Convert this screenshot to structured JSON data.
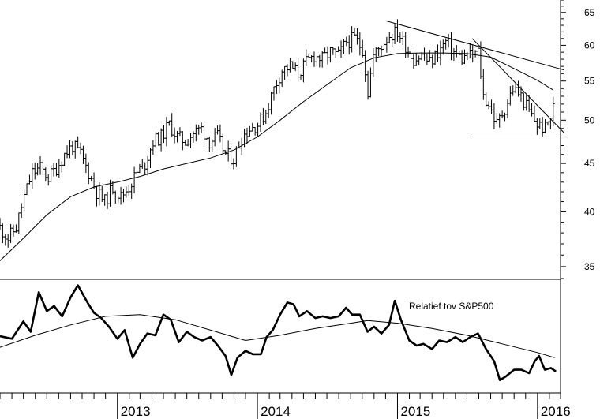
{
  "chart_data": [
    {
      "type": "ohlc",
      "y_scale": "log",
      "ylim": [
        34,
        67
      ],
      "y_ticks": [
        "35",
        "40",
        "45",
        "50",
        "55",
        "60",
        "65"
      ],
      "x_range": [
        "2012-03-01",
        "2016-03-01"
      ],
      "x_tick_labels": [
        {
          "date": "2013-01-01",
          "label": "2013"
        },
        {
          "date": "2014-01-01",
          "label": "2014"
        },
        {
          "date": "2015-01-01",
          "label": "2015"
        },
        {
          "date": "2016-01-01",
          "label": "2016"
        }
      ],
      "price_close": [
        [
          "2012-03-01",
          38.5
        ],
        [
          "2012-03-22",
          37.5
        ],
        [
          "2012-04-12",
          38.5
        ],
        [
          "2012-05-03",
          41.5
        ],
        [
          "2012-05-24",
          44.0
        ],
        [
          "2012-06-14",
          44.5
        ],
        [
          "2012-07-05",
          43.5
        ],
        [
          "2012-07-26",
          44.5
        ],
        [
          "2012-08-16",
          46.0
        ],
        [
          "2012-09-06",
          47.0
        ],
        [
          "2012-09-27",
          46.0
        ],
        [
          "2012-10-18",
          44.0
        ],
        [
          "2012-11-08",
          42.0
        ],
        [
          "2012-11-29",
          41.0
        ],
        [
          "2012-12-20",
          42.5
        ],
        [
          "2013-01-10",
          41.5
        ],
        [
          "2013-01-31",
          42.5
        ],
        [
          "2013-02-21",
          44.0
        ],
        [
          "2013-03-14",
          45.0
        ],
        [
          "2013-04-04",
          47.5
        ],
        [
          "2013-04-25",
          48.0
        ],
        [
          "2013-05-16",
          49.5
        ],
        [
          "2013-06-06",
          48.0
        ],
        [
          "2013-06-27",
          47.5
        ],
        [
          "2013-07-18",
          48.5
        ],
        [
          "2013-08-08",
          49.0
        ],
        [
          "2013-08-29",
          47.5
        ],
        [
          "2013-09-19",
          48.0
        ],
        [
          "2013-10-10",
          46.0
        ],
        [
          "2013-10-31",
          45.5
        ],
        [
          "2013-11-21",
          48.0
        ],
        [
          "2013-12-12",
          49.0
        ],
        [
          "2014-01-02",
          49.5
        ],
        [
          "2014-01-23",
          51.0
        ],
        [
          "2014-02-13",
          54.0
        ],
        [
          "2014-03-06",
          56.5
        ],
        [
          "2014-03-27",
          57.0
        ],
        [
          "2014-04-17",
          56.0
        ],
        [
          "2014-05-08",
          57.5
        ],
        [
          "2014-05-29",
          58.5
        ],
        [
          "2014-06-19",
          58.0
        ],
        [
          "2014-07-10",
          59.0
        ],
        [
          "2014-07-31",
          58.5
        ],
        [
          "2014-08-21",
          60.5
        ],
        [
          "2014-09-11",
          61.0
        ],
        [
          "2014-10-02",
          59.5
        ],
        [
          "2014-10-16",
          53.5
        ],
        [
          "2014-10-30",
          58.5
        ],
        [
          "2014-11-20",
          60.0
        ],
        [
          "2014-12-11",
          61.5
        ],
        [
          "2015-01-01",
          62.0
        ],
        [
          "2015-01-22",
          60.0
        ],
        [
          "2015-02-12",
          58.0
        ],
        [
          "2015-03-05",
          58.5
        ],
        [
          "2015-03-26",
          57.5
        ],
        [
          "2015-04-16",
          59.0
        ],
        [
          "2015-05-07",
          60.5
        ],
        [
          "2015-05-28",
          59.0
        ],
        [
          "2015-06-18",
          58.0
        ],
        [
          "2015-07-09",
          58.5
        ],
        [
          "2015-07-30",
          59.0
        ],
        [
          "2015-08-13",
          53.0
        ],
        [
          "2015-08-27",
          52.0
        ],
        [
          "2015-09-17",
          49.5
        ],
        [
          "2015-10-08",
          51.5
        ],
        [
          "2015-10-29",
          54.0
        ],
        [
          "2015-11-19",
          53.0
        ],
        [
          "2015-12-10",
          51.0
        ],
        [
          "2015-12-31",
          49.5
        ],
        [
          "2016-01-21",
          49.0
        ],
        [
          "2016-02-04",
          50.5
        ],
        [
          "2016-02-11",
          51.5
        ]
      ],
      "moving_average": [
        [
          "2012-03-01",
          35.5
        ],
        [
          "2012-05-01",
          37.5
        ],
        [
          "2012-07-01",
          39.7
        ],
        [
          "2012-09-01",
          41.5
        ],
        [
          "2012-11-01",
          42.5
        ],
        [
          "2013-01-01",
          43.0
        ],
        [
          "2013-03-01",
          43.6
        ],
        [
          "2013-05-01",
          44.4
        ],
        [
          "2013-07-01",
          45.0
        ],
        [
          "2013-09-01",
          45.6
        ],
        [
          "2013-11-01",
          46.5
        ],
        [
          "2014-01-01",
          48.0
        ],
        [
          "2014-03-01",
          50.0
        ],
        [
          "2014-05-01",
          52.3
        ],
        [
          "2014-07-01",
          54.5
        ],
        [
          "2014-09-01",
          56.8
        ],
        [
          "2014-11-01",
          58.2
        ],
        [
          "2015-01-01",
          58.8
        ],
        [
          "2015-03-01",
          58.9
        ],
        [
          "2015-05-01",
          58.9
        ],
        [
          "2015-07-01",
          58.8
        ],
        [
          "2015-09-01",
          58.3
        ],
        [
          "2015-11-01",
          56.7
        ],
        [
          "2016-01-01",
          55.1
        ],
        [
          "2016-02-11",
          53.8
        ]
      ],
      "trendlines": [
        {
          "from": [
            "2014-12-01",
            63.7
          ],
          "to": [
            "2016-03-10",
            56.5
          ]
        },
        {
          "from": [
            "2015-07-15",
            61.0
          ],
          "to": [
            "2016-03-10",
            48.5
          ]
        }
      ],
      "support_line": {
        "from": [
          "2015-07-15",
          48.0
        ],
        "to": [
          "2016-03-20",
          48.0
        ]
      }
    },
    {
      "type": "line",
      "title": "Relatief tov S&P500",
      "relative_line": [
        [
          "2012-03-01",
          0.35
        ],
        [
          "2012-04-01",
          0.32
        ],
        [
          "2012-05-01",
          0.52
        ],
        [
          "2012-05-20",
          0.4
        ],
        [
          "2012-06-10",
          0.86
        ],
        [
          "2012-07-01",
          0.64
        ],
        [
          "2012-07-20",
          0.7
        ],
        [
          "2012-08-10",
          0.58
        ],
        [
          "2012-09-01",
          0.8
        ],
        [
          "2012-09-20",
          0.94
        ],
        [
          "2012-10-15",
          0.74
        ],
        [
          "2012-11-01",
          0.62
        ],
        [
          "2012-11-20",
          0.56
        ],
        [
          "2012-12-10",
          0.46
        ],
        [
          "2013-01-01",
          0.32
        ],
        [
          "2013-01-20",
          0.42
        ],
        [
          "2013-02-10",
          0.1
        ],
        [
          "2013-03-01",
          0.26
        ],
        [
          "2013-03-20",
          0.38
        ],
        [
          "2013-04-10",
          0.36
        ],
        [
          "2013-05-01",
          0.6
        ],
        [
          "2013-05-20",
          0.54
        ],
        [
          "2013-06-10",
          0.28
        ],
        [
          "2013-07-01",
          0.4
        ],
        [
          "2013-07-20",
          0.34
        ],
        [
          "2013-08-10",
          0.3
        ],
        [
          "2013-09-01",
          0.34
        ],
        [
          "2013-09-20",
          0.24
        ],
        [
          "2013-10-10",
          0.12
        ],
        [
          "2013-10-25",
          -0.1
        ],
        [
          "2013-11-10",
          0.1
        ],
        [
          "2013-12-01",
          0.18
        ],
        [
          "2013-12-20",
          0.14
        ],
        [
          "2014-01-10",
          0.14
        ],
        [
          "2014-01-25",
          0.34
        ],
        [
          "2014-02-10",
          0.42
        ],
        [
          "2014-03-01",
          0.6
        ],
        [
          "2014-03-20",
          0.74
        ],
        [
          "2014-04-05",
          0.72
        ],
        [
          "2014-04-20",
          0.58
        ],
        [
          "2014-05-10",
          0.64
        ],
        [
          "2014-06-01",
          0.56
        ],
        [
          "2014-06-20",
          0.58
        ],
        [
          "2014-07-10",
          0.56
        ],
        [
          "2014-08-01",
          0.58
        ],
        [
          "2014-08-20",
          0.68
        ],
        [
          "2014-09-05",
          0.6
        ],
        [
          "2014-09-25",
          0.6
        ],
        [
          "2014-10-15",
          0.4
        ],
        [
          "2014-11-01",
          0.46
        ],
        [
          "2014-11-20",
          0.38
        ],
        [
          "2014-12-10",
          0.48
        ],
        [
          "2014-12-25",
          0.76
        ],
        [
          "2015-01-10",
          0.54
        ],
        [
          "2015-02-01",
          0.3
        ],
        [
          "2015-02-20",
          0.24
        ],
        [
          "2015-03-10",
          0.26
        ],
        [
          "2015-04-01",
          0.2
        ],
        [
          "2015-04-20",
          0.3
        ],
        [
          "2015-05-10",
          0.28
        ],
        [
          "2015-06-01",
          0.34
        ],
        [
          "2015-06-20",
          0.28
        ],
        [
          "2015-07-10",
          0.34
        ],
        [
          "2015-07-30",
          0.38
        ],
        [
          "2015-08-20",
          0.2
        ],
        [
          "2015-09-10",
          0.06
        ],
        [
          "2015-09-25",
          -0.16
        ],
        [
          "2015-10-10",
          -0.12
        ],
        [
          "2015-11-01",
          -0.04
        ],
        [
          "2015-11-20",
          -0.04
        ],
        [
          "2015-12-10",
          -0.08
        ],
        [
          "2015-12-25",
          0.06
        ],
        [
          "2016-01-05",
          0.12
        ],
        [
          "2016-01-20",
          -0.04
        ],
        [
          "2016-02-05",
          -0.02
        ],
        [
          "2016-02-18",
          -0.06
        ]
      ],
      "relative_average": [
        [
          "2012-03-01",
          0.22
        ],
        [
          "2012-06-01",
          0.36
        ],
        [
          "2012-09-01",
          0.48
        ],
        [
          "2012-12-01",
          0.58
        ],
        [
          "2013-03-01",
          0.6
        ],
        [
          "2013-06-01",
          0.54
        ],
        [
          "2013-09-01",
          0.42
        ],
        [
          "2013-12-01",
          0.3
        ],
        [
          "2014-03-01",
          0.36
        ],
        [
          "2014-06-01",
          0.44
        ],
        [
          "2014-09-01",
          0.5
        ],
        [
          "2014-10-15",
          0.53
        ],
        [
          "2015-01-01",
          0.5
        ],
        [
          "2015-04-01",
          0.44
        ],
        [
          "2015-07-01",
          0.36
        ],
        [
          "2015-10-01",
          0.26
        ],
        [
          "2016-01-01",
          0.16
        ],
        [
          "2016-02-15",
          0.1
        ]
      ]
    }
  ]
}
